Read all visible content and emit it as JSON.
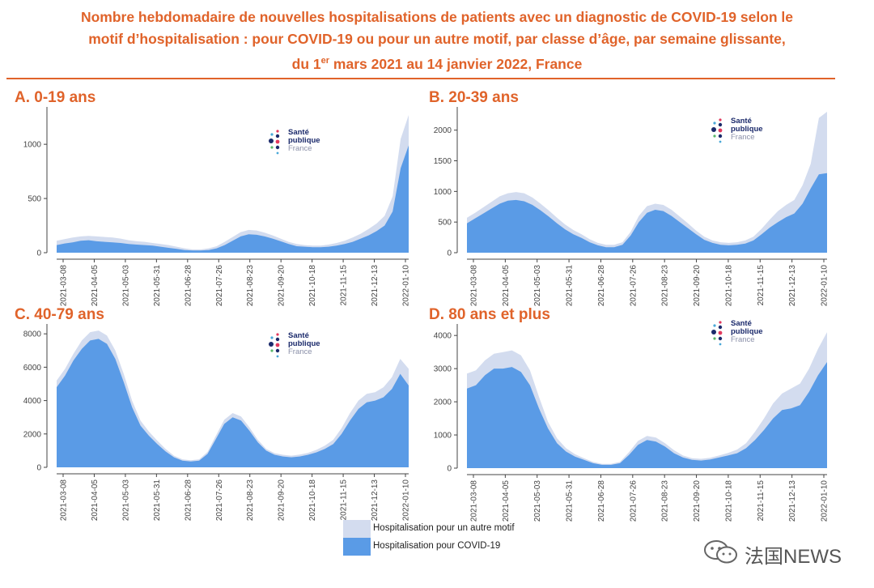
{
  "header": {
    "title_line1": "Nombre hebdomadaire de nouvelles hospitalisations de patients avec un diagnostic de COVID-19 selon le",
    "title_line2": "motif d’hospitalisation : pour COVID-19 ou pour un autre motif, par classe d’âge, par semaine glissante,",
    "title_line3_pre": "du 1",
    "title_line3_sup": "er",
    "title_line3_post": " mars 2021 au 14 janvier 2022, France"
  },
  "logo": {
    "line1": "Santé",
    "line2": "publique",
    "line3": "France"
  },
  "legend": {
    "other_label": "Hospitalisation pour un autre motif",
    "covid_label": "Hospitalisation pour COVID-19"
  },
  "watermark": {
    "text": "法国NEWS"
  },
  "colors": {
    "accent": "#e0632a",
    "covid": "#5a9be6",
    "other": "#d3dcef",
    "axis": "#444444"
  },
  "chart_data": [
    {
      "title": "A. 0-19 ans",
      "type": "area",
      "x_ticks": [
        "2021-03-08",
        "2021-04-05",
        "2021-05-03",
        "2021-05-31",
        "2021-06-28",
        "2021-07-26",
        "2021-08-23",
        "2021-09-20",
        "2021-10-18",
        "2021-11-15",
        "2021-12-13",
        "2022-01-10"
      ],
      "y_ticks": [
        0,
        500,
        1000
      ],
      "ylim": [
        0,
        1300
      ],
      "series": [
        {
          "name": "Hospitalisation pour COVID-19",
          "values": [
            70,
            85,
            95,
            110,
            115,
            105,
            100,
            95,
            90,
            80,
            75,
            70,
            65,
            55,
            45,
            35,
            25,
            20,
            20,
            25,
            40,
            70,
            110,
            150,
            170,
            165,
            150,
            130,
            105,
            80,
            60,
            55,
            50,
            50,
            55,
            65,
            80,
            100,
            130,
            160,
            200,
            250,
            380,
            780,
            990
          ]
        },
        {
          "name": "Hospitalisation pour un autre motif",
          "values": [
            110,
            125,
            140,
            150,
            155,
            150,
            145,
            140,
            130,
            115,
            105,
            100,
            90,
            80,
            70,
            55,
            40,
            30,
            30,
            40,
            60,
            100,
            145,
            190,
            210,
            205,
            185,
            160,
            130,
            100,
            80,
            70,
            65,
            65,
            75,
            90,
            110,
            140,
            175,
            220,
            270,
            340,
            520,
            1050,
            1270
          ]
        }
      ]
    },
    {
      "title": "B. 20-39 ans",
      "type": "area",
      "x_ticks": [
        "2021-03-08",
        "2021-04-05",
        "2021-05-03",
        "2021-05-31",
        "2021-06-28",
        "2021-07-26",
        "2021-08-23",
        "2021-09-20",
        "2021-10-18",
        "2021-11-15",
        "2021-12-13",
        "2022-01-10"
      ],
      "y_ticks": [
        0,
        500,
        1000,
        1500,
        2000
      ],
      "ylim": [
        0,
        2300
      ],
      "series": [
        {
          "name": "Hospitalisation pour COVID-19",
          "values": [
            480,
            560,
            640,
            720,
            800,
            850,
            860,
            840,
            780,
            690,
            590,
            480,
            380,
            300,
            240,
            170,
            120,
            90,
            90,
            130,
            280,
            500,
            650,
            700,
            680,
            600,
            500,
            400,
            300,
            210,
            160,
            130,
            120,
            130,
            150,
            200,
            300,
            410,
            500,
            580,
            640,
            800,
            1050,
            1280,
            1300
          ]
        },
        {
          "name": "Hospitalisation pour un autre motif",
          "values": [
            570,
            650,
            740,
            830,
            920,
            970,
            990,
            970,
            900,
            800,
            690,
            570,
            460,
            370,
            300,
            220,
            160,
            130,
            130,
            170,
            340,
            600,
            760,
            800,
            780,
            700,
            590,
            480,
            360,
            260,
            200,
            170,
            160,
            170,
            200,
            260,
            390,
            540,
            680,
            780,
            860,
            1100,
            1450,
            2200,
            2300
          ]
        }
      ]
    },
    {
      "title": "C. 40-79 ans",
      "type": "area",
      "x_ticks": [
        "2021-03-08",
        "2021-04-05",
        "2021-05-03",
        "2021-05-31",
        "2021-06-28",
        "2021-07-26",
        "2021-08-23",
        "2021-09-20",
        "2021-10-18",
        "2021-11-15",
        "2021-12-13",
        "2022-01-10"
      ],
      "y_ticks": [
        0,
        2000,
        4000,
        6000,
        8000
      ],
      "ylim": [
        0,
        8300
      ],
      "series": [
        {
          "name": "Hospitalisation pour COVID-19",
          "values": [
            4800,
            5500,
            6400,
            7100,
            7600,
            7700,
            7400,
            6500,
            5100,
            3600,
            2500,
            1900,
            1400,
            950,
            600,
            400,
            350,
            400,
            800,
            1700,
            2600,
            3000,
            2800,
            2200,
            1500,
            1000,
            750,
            650,
            600,
            650,
            750,
            900,
            1100,
            1400,
            2000,
            2800,
            3500,
            3900,
            4000,
            4200,
            4700,
            5600,
            4900
          ]
        },
        {
          "name": "Hospitalisation pour un autre motif",
          "values": [
            5200,
            5900,
            6800,
            7600,
            8100,
            8200,
            7900,
            7000,
            5600,
            4000,
            2800,
            2150,
            1600,
            1100,
            700,
            480,
            420,
            480,
            920,
            1900,
            2850,
            3250,
            3050,
            2400,
            1650,
            1100,
            850,
            750,
            700,
            760,
            870,
            1050,
            1300,
            1650,
            2350,
            3250,
            4000,
            4400,
            4500,
            4800,
            5400,
            6500,
            5900
          ]
        }
      ]
    },
    {
      "title": "D. 80 ans et plus",
      "type": "area",
      "x_ticks": [
        "2021-03-08",
        "2021-04-05",
        "2021-05-03",
        "2021-05-31",
        "2021-06-28",
        "2021-07-26",
        "2021-08-23",
        "2021-09-20",
        "2021-10-18",
        "2021-11-15",
        "2021-12-13",
        "2022-01-10"
      ],
      "y_ticks": [
        0,
        1000,
        2000,
        3000,
        4000
      ],
      "ylim": [
        0,
        4200
      ],
      "series": [
        {
          "name": "Hospitalisation pour COVID-19",
          "values": [
            2400,
            2500,
            2800,
            3000,
            3000,
            3050,
            2900,
            2500,
            1800,
            1200,
            750,
            500,
            350,
            250,
            150,
            100,
            100,
            150,
            400,
            700,
            850,
            800,
            650,
            450,
            320,
            250,
            230,
            260,
            320,
            380,
            450,
            600,
            850,
            1150,
            1500,
            1750,
            1800,
            1900,
            2300,
            2800,
            3200
          ]
        },
        {
          "name": "Hospitalisation pour un autre motif",
          "values": [
            2850,
            2950,
            3250,
            3450,
            3500,
            3550,
            3400,
            2950,
            2150,
            1400,
            900,
            600,
            420,
            300,
            190,
            130,
            130,
            190,
            480,
            820,
            970,
            920,
            750,
            540,
            380,
            300,
            280,
            310,
            380,
            460,
            560,
            750,
            1100,
            1500,
            1950,
            2250,
            2400,
            2550,
            3000,
            3600,
            4100
          ]
        }
      ]
    }
  ]
}
